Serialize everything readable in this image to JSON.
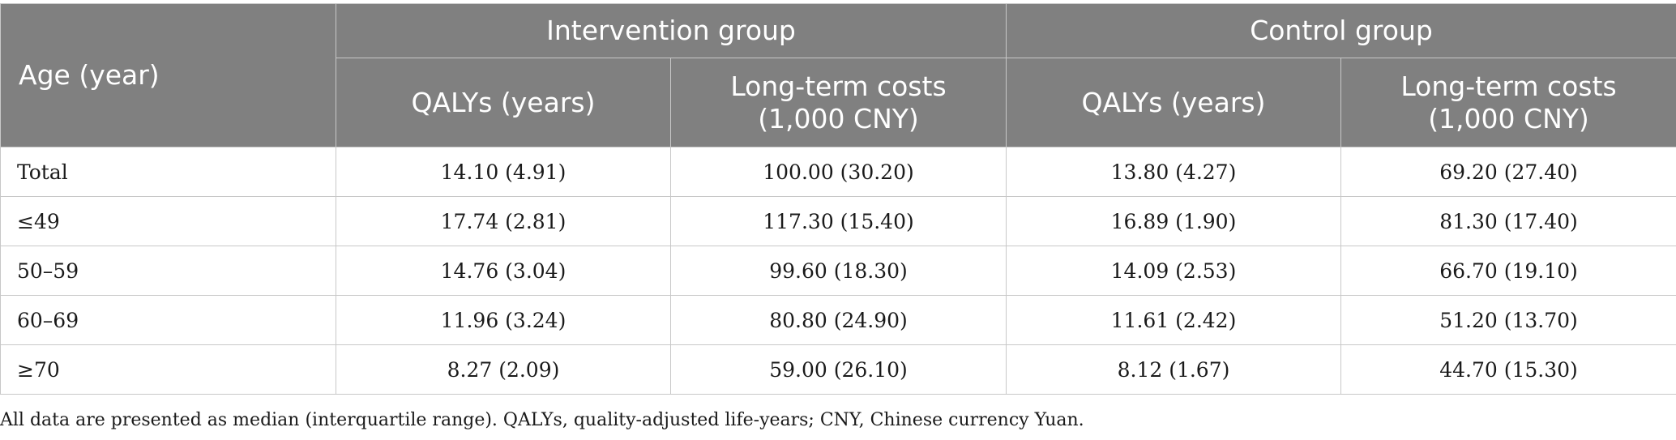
{
  "header": {
    "age_label": "Age (year)",
    "group1": "Intervention group",
    "group2": "Control group",
    "col_qalys": "QALYs (years)",
    "col_costs_line1": "Long-term costs",
    "col_costs_line2": "(1,000 CNY)"
  },
  "rows": [
    {
      "age": "Total",
      "int_qalys": "14.10 (4.91)",
      "int_costs": "100.00 (30.20)",
      "ctl_qalys": "13.80 (4.27)",
      "ctl_costs": "69.20 (27.40)"
    },
    {
      "age": "≤49",
      "int_qalys": "17.74 (2.81)",
      "int_costs": "117.30 (15.40)",
      "ctl_qalys": "16.89 (1.90)",
      "ctl_costs": "81.30 (17.40)"
    },
    {
      "age": "50–59",
      "int_qalys": "14.76 (3.04)",
      "int_costs": "99.60 (18.30)",
      "ctl_qalys": "14.09 (2.53)",
      "ctl_costs": "66.70 (19.10)"
    },
    {
      "age": "60–69",
      "int_qalys": "11.96 (3.24)",
      "int_costs": "80.80 (24.90)",
      "ctl_qalys": "11.61 (2.42)",
      "ctl_costs": "51.20 (13.70)"
    },
    {
      "age": "≥70",
      "int_qalys": "8.27 (2.09)",
      "int_costs": "59.00 (26.10)",
      "ctl_qalys": "8.12 (1.67)",
      "ctl_costs": "44.70 (15.30)"
    }
  ],
  "footnote": "All data are presented as median (interquartile range). QALYs, quality-adjusted life-years; CNY, Chinese currency Yuan."
}
